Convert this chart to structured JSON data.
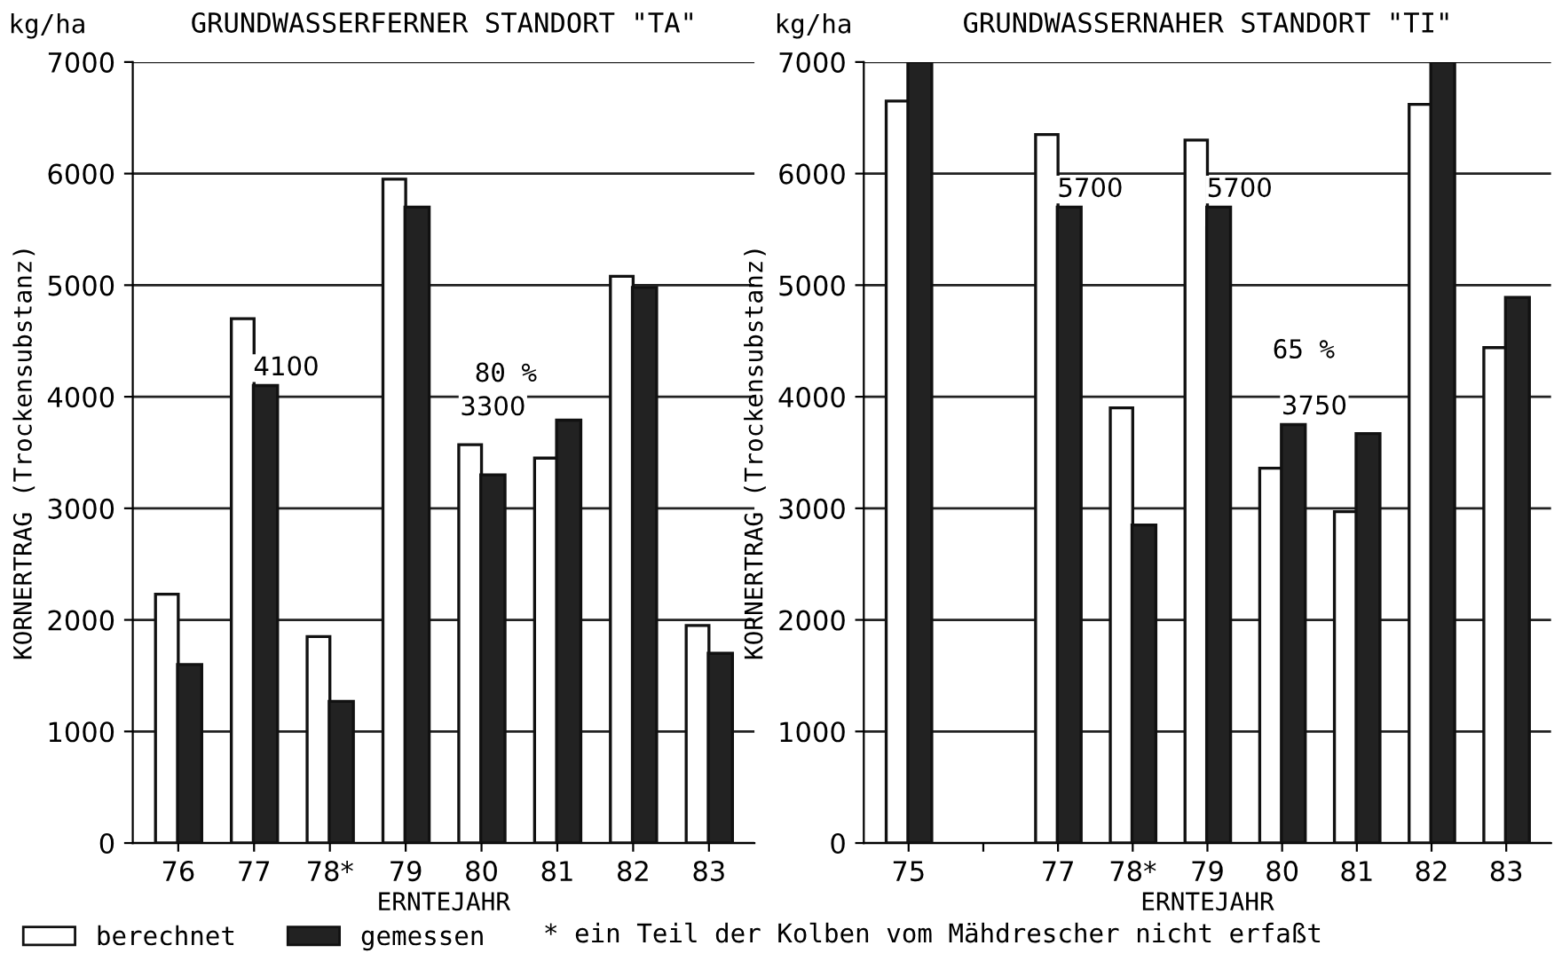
{
  "chart_data": [
    {
      "type": "bar",
      "title": "GRUNDWASSERFERNER STANDORT \"TA\"",
      "xlabel": "ERNTEJAHR",
      "ylabel": "KORNERTRAG (Trockensubstanz)",
      "categories": [
        "76",
        "77",
        "78*",
        "79",
        "80",
        "81",
        "82",
        "83"
      ],
      "series": [
        {
          "name": "berechnet",
          "color": "#ffffff",
          "values": [
            2230,
            4700,
            1850,
            5950,
            3570,
            3450,
            5080,
            1950
          ]
        },
        {
          "name": "gemessen",
          "color": "#222222",
          "values": [
            1600,
            4100,
            1270,
            5700,
            3300,
            3790,
            4980,
            1700
          ],
          "value_labels": [
            null,
            "4100",
            null,
            null,
            "3300",
            null,
            null,
            null
          ]
        }
      ],
      "ylim": [
        0,
        7000
      ],
      "yticks": [
        0,
        1000,
        2000,
        3000,
        4000,
        5000,
        6000,
        7000
      ],
      "grid": "y",
      "legend": "bottom",
      "annotations": [
        "kg/ha",
        "80 %",
        "* ein Teil der Kolben vom Mähdrescher nicht erfaßt"
      ]
    },
    {
      "type": "bar",
      "title": "GRUNDWASSERNAHER STANDORT \"TI\"",
      "xlabel": "ERNTEJAHR",
      "ylabel": "KORNERTRAG (Trockensubstanz)",
      "categories": [
        "75",
        null,
        "77",
        "78*",
        "79",
        "80",
        "81",
        "82",
        "83"
      ],
      "series": [
        {
          "color": "#ffffff",
          "values": [
            6650,
            null,
            6350,
            3900,
            6300,
            3360,
            2970,
            6620,
            4440
          ]
        },
        {
          "color": "#222222",
          "values": [
            7000,
            null,
            5700,
            2850,
            5700,
            3750,
            3670,
            7000,
            4890
          ],
          "value_labels": [
            null,
            null,
            "5700",
            null,
            "5700",
            "3750",
            null,
            null,
            null
          ]
        }
      ],
      "ylim": [
        0,
        7000
      ],
      "yticks": [
        0,
        1000,
        2000,
        3000,
        4000,
        5000,
        6000,
        7000
      ],
      "grid": "y",
      "annotations": [
        "kg/ha",
        "65 %"
      ]
    }
  ]
}
